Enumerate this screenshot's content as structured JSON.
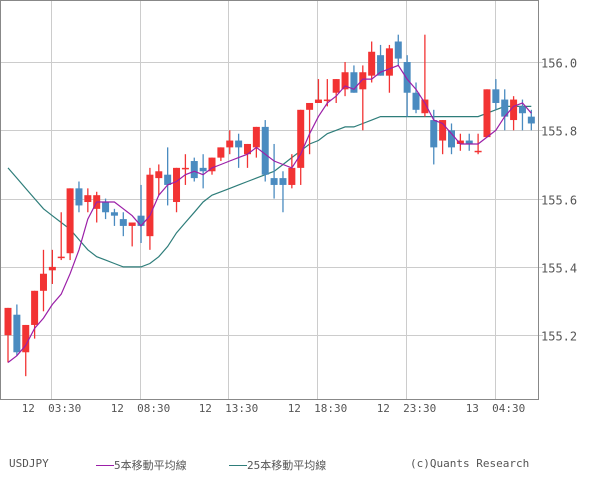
{
  "chart_data": {
    "type": "candlestick",
    "title": "",
    "symbol": "USDJPY",
    "interval_minutes": 30,
    "xlabel": "",
    "ylabel": "",
    "ylim": [
      155.035,
      156.18
    ],
    "y_ticks": [
      155.2,
      155.4,
      155.6,
      155.8,
      156.0
    ],
    "y_tick_labels": [
      "155.2",
      "155.4",
      "155.6",
      "155.8",
      "156.0"
    ],
    "x_tick_labels": [
      "12  03:30",
      "12  08:30",
      "12  13:30",
      "12  18:30",
      "12  23:30",
      "13  04:30"
    ],
    "x_tick_candle_index": [
      5,
      15,
      25,
      35,
      45,
      55
    ],
    "grid": true,
    "legend_position": "bottom",
    "legend": [
      {
        "name": "5本移動平均線",
        "color": "#9B1FA8"
      },
      {
        "name": "25本移動平均線",
        "color": "#2E7D7A"
      }
    ],
    "up_color": "#F23333",
    "down_color": "#4A8BC0",
    "candles": [
      {
        "o": 155.2,
        "h": 155.27,
        "l": 155.12,
        "c": 155.28
      },
      {
        "o": 155.26,
        "h": 155.29,
        "l": 155.14,
        "c": 155.15
      },
      {
        "o": 155.15,
        "h": 155.23,
        "l": 155.08,
        "c": 155.23
      },
      {
        "o": 155.23,
        "h": 155.31,
        "l": 155.19,
        "c": 155.33
      },
      {
        "o": 155.33,
        "h": 155.45,
        "l": 155.27,
        "c": 155.38
      },
      {
        "o": 155.39,
        "h": 155.45,
        "l": 155.35,
        "c": 155.4
      },
      {
        "o": 155.43,
        "h": 155.56,
        "l": 155.42,
        "c": 155.43
      },
      {
        "o": 155.44,
        "h": 155.56,
        "l": 155.42,
        "c": 155.63
      },
      {
        "o": 155.63,
        "h": 155.65,
        "l": 155.56,
        "c": 155.58
      },
      {
        "o": 155.59,
        "h": 155.63,
        "l": 155.56,
        "c": 155.61
      },
      {
        "o": 155.57,
        "h": 155.62,
        "l": 155.53,
        "c": 155.61
      },
      {
        "o": 155.59,
        "h": 155.6,
        "l": 155.54,
        "c": 155.56
      },
      {
        "o": 155.56,
        "h": 155.57,
        "l": 155.52,
        "c": 155.55
      },
      {
        "o": 155.54,
        "h": 155.56,
        "l": 155.49,
        "c": 155.52
      },
      {
        "o": 155.52,
        "h": 155.53,
        "l": 155.46,
        "c": 155.53
      },
      {
        "o": 155.55,
        "h": 155.64,
        "l": 155.47,
        "c": 155.52
      },
      {
        "o": 155.49,
        "h": 155.69,
        "l": 155.45,
        "c": 155.67
      },
      {
        "o": 155.66,
        "h": 155.7,
        "l": 155.61,
        "c": 155.68
      },
      {
        "o": 155.67,
        "h": 155.75,
        "l": 155.58,
        "c": 155.64
      },
      {
        "o": 155.59,
        "h": 155.66,
        "l": 155.56,
        "c": 155.69
      },
      {
        "o": 155.69,
        "h": 155.73,
        "l": 155.64,
        "c": 155.69
      },
      {
        "o": 155.71,
        "h": 155.72,
        "l": 155.65,
        "c": 155.66
      },
      {
        "o": 155.69,
        "h": 155.73,
        "l": 155.63,
        "c": 155.68
      },
      {
        "o": 155.68,
        "h": 155.72,
        "l": 155.67,
        "c": 155.72
      },
      {
        "o": 155.72,
        "h": 155.75,
        "l": 155.71,
        "c": 155.75
      },
      {
        "o": 155.75,
        "h": 155.8,
        "l": 155.73,
        "c": 155.77
      },
      {
        "o": 155.77,
        "h": 155.79,
        "l": 155.69,
        "c": 155.75
      },
      {
        "o": 155.73,
        "h": 155.76,
        "l": 155.69,
        "c": 155.76
      },
      {
        "o": 155.75,
        "h": 155.81,
        "l": 155.72,
        "c": 155.81
      },
      {
        "o": 155.81,
        "h": 155.83,
        "l": 155.65,
        "c": 155.67
      },
      {
        "o": 155.66,
        "h": 155.76,
        "l": 155.6,
        "c": 155.64
      },
      {
        "o": 155.66,
        "h": 155.68,
        "l": 155.56,
        "c": 155.64
      },
      {
        "o": 155.64,
        "h": 155.73,
        "l": 155.63,
        "c": 155.69
      },
      {
        "o": 155.69,
        "h": 155.77,
        "l": 155.64,
        "c": 155.86
      },
      {
        "o": 155.86,
        "h": 155.88,
        "l": 155.73,
        "c": 155.88
      },
      {
        "o": 155.88,
        "h": 155.95,
        "l": 155.89,
        "c": 155.89
      },
      {
        "o": 155.89,
        "h": 155.95,
        "l": 155.87,
        "c": 155.89
      },
      {
        "o": 155.91,
        "h": 155.94,
        "l": 155.88,
        "c": 155.95
      },
      {
        "o": 155.92,
        "h": 156.0,
        "l": 155.9,
        "c": 155.97
      },
      {
        "o": 155.97,
        "h": 155.99,
        "l": 155.91,
        "c": 155.91
      },
      {
        "o": 155.92,
        "h": 155.99,
        "l": 155.8,
        "c": 155.97
      },
      {
        "o": 155.96,
        "h": 156.06,
        "l": 155.94,
        "c": 156.03
      },
      {
        "o": 156.02,
        "h": 156.05,
        "l": 155.96,
        "c": 155.96
      },
      {
        "o": 155.96,
        "h": 156.05,
        "l": 155.91,
        "c": 156.04
      },
      {
        "o": 156.06,
        "h": 156.08,
        "l": 155.99,
        "c": 156.01
      },
      {
        "o": 156.0,
        "h": 156.02,
        "l": 155.84,
        "c": 155.91
      },
      {
        "o": 155.91,
        "h": 155.94,
        "l": 155.85,
        "c": 155.86
      },
      {
        "o": 155.85,
        "h": 156.08,
        "l": 155.84,
        "c": 155.89
      },
      {
        "o": 155.83,
        "h": 155.86,
        "l": 155.7,
        "c": 155.75
      },
      {
        "o": 155.77,
        "h": 155.83,
        "l": 155.73,
        "c": 155.83
      },
      {
        "o": 155.8,
        "h": 155.82,
        "l": 155.73,
        "c": 155.75
      },
      {
        "o": 155.76,
        "h": 155.79,
        "l": 155.74,
        "c": 155.77
      },
      {
        "o": 155.77,
        "h": 155.79,
        "l": 155.74,
        "c": 155.76
      },
      {
        "o": 155.74,
        "h": 155.79,
        "l": 155.73,
        "c": 155.74
      },
      {
        "o": 155.78,
        "h": 155.92,
        "l": 155.8,
        "c": 155.92
      },
      {
        "o": 155.92,
        "h": 155.95,
        "l": 155.86,
        "c": 155.88
      },
      {
        "o": 155.89,
        "h": 155.92,
        "l": 155.8,
        "c": 155.84
      },
      {
        "o": 155.83,
        "h": 155.9,
        "l": 155.8,
        "c": 155.89
      },
      {
        "o": 155.87,
        "h": 155.89,
        "l": 155.8,
        "c": 155.85
      },
      {
        "o": 155.84,
        "h": 155.86,
        "l": 155.8,
        "c": 155.82
      }
    ],
    "series": [
      {
        "name": "5本移動平均線",
        "values": [
          155.12,
          155.14,
          155.17,
          155.22,
          155.25,
          155.29,
          155.32,
          155.38,
          155.45,
          155.54,
          155.59,
          155.59,
          155.59,
          155.57,
          155.55,
          155.52,
          155.55,
          155.61,
          155.64,
          155.65,
          155.67,
          155.68,
          155.67,
          155.69,
          155.7,
          155.71,
          155.72,
          155.73,
          155.75,
          155.73,
          155.71,
          155.7,
          155.69,
          155.73,
          155.79,
          155.84,
          155.88,
          155.9,
          155.93,
          155.92,
          155.95,
          155.95,
          155.97,
          155.98,
          155.99,
          155.95,
          155.92,
          155.88,
          155.83,
          155.82,
          155.79,
          155.76,
          155.76,
          155.76,
          155.78,
          155.8,
          155.84,
          155.87,
          155.88,
          155.85
        ]
      },
      {
        "name": "25本移動平均線",
        "values": [
          155.69,
          155.66,
          155.63,
          155.6,
          155.57,
          155.55,
          155.53,
          155.51,
          155.48,
          155.45,
          155.43,
          155.42,
          155.41,
          155.4,
          155.4,
          155.4,
          155.41,
          155.43,
          155.46,
          155.5,
          155.53,
          155.56,
          155.59,
          155.61,
          155.62,
          155.63,
          155.64,
          155.65,
          155.66,
          155.67,
          155.68,
          155.7,
          155.72,
          155.74,
          155.76,
          155.77,
          155.79,
          155.8,
          155.81,
          155.81,
          155.82,
          155.83,
          155.84,
          155.84,
          155.84,
          155.84,
          155.84,
          155.84,
          155.84,
          155.84,
          155.84,
          155.84,
          155.84,
          155.84,
          155.85,
          155.86,
          155.87,
          155.87,
          155.87,
          155.87
        ]
      }
    ]
  },
  "footer": {
    "symbol": "USDJPY",
    "ma5_label": "5本移動平均線",
    "ma25_label": "25本移動平均線",
    "copyright": "(c)Quants Research"
  }
}
